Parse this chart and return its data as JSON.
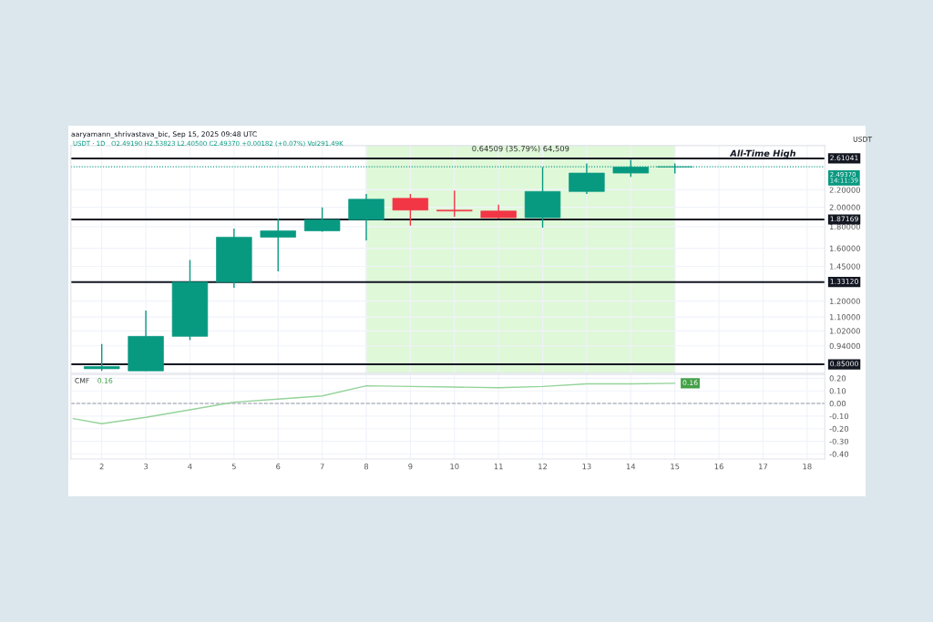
{
  "chart_data": [
    {
      "type": "candlestick",
      "title": "aaryamann_shrivastava_bic, Sep 15, 2025 09:48 UTC",
      "subtitle": "USDT · 1D   O2.49190 H2.53823 L2.40500 C2.49370 +0.00182 (+0.07%) Vol291.49K",
      "ylabel": "USDT",
      "x": [
        2,
        3,
        4,
        5,
        6,
        7,
        8,
        9,
        10,
        11,
        12,
        13,
        14,
        15
      ],
      "ohlc": [
        [
          0.83,
          0.95,
          0.82,
          0.84
        ],
        [
          0.82,
          1.14,
          0.82,
          0.99
        ],
        [
          0.99,
          1.5,
          0.97,
          1.33
        ],
        [
          1.33,
          1.78,
          1.29,
          1.7
        ],
        [
          1.7,
          1.88,
          1.41,
          1.76
        ],
        [
          1.76,
          2.0,
          1.75,
          1.87
        ],
        [
          1.87,
          2.15,
          1.67,
          2.09
        ],
        [
          2.1,
          2.15,
          1.81,
          1.97
        ],
        [
          1.97,
          2.19,
          1.9,
          1.96
        ],
        [
          1.96,
          2.03,
          1.88,
          1.89
        ],
        [
          1.89,
          2.49,
          1.79,
          2.18
        ],
        [
          2.18,
          2.54,
          2.15,
          2.41
        ],
        [
          2.41,
          2.59,
          2.36,
          2.49
        ],
        [
          2.4919,
          2.53823,
          2.405,
          2.4937
        ]
      ],
      "colors": [
        "#089981",
        "#089981",
        "#089981",
        "#089981",
        "#089981",
        "#089981",
        "#089981",
        "#f23645",
        "#f23645",
        "#f23645",
        "#089981",
        "#089981",
        "#089981",
        "#089981"
      ],
      "log": true,
      "xlim": [
        1.3,
        18.4
      ],
      "ylim": [
        0.81,
        2.8
      ],
      "yticks": [
        {
          "value": 0.94,
          "label": "0.94000"
        },
        {
          "value": 1.02,
          "label": "1.02000"
        },
        {
          "value": 1.1,
          "label": "1.10000"
        },
        {
          "value": 1.2,
          "label": "1.20000"
        },
        {
          "value": 1.45,
          "label": "1.45000"
        },
        {
          "value": 1.6,
          "label": "1.60000"
        },
        {
          "value": 1.8,
          "label": "1.80000"
        },
        {
          "value": 2.0,
          "label": "2.00000"
        },
        {
          "value": 2.2,
          "label": "2.20000"
        }
      ],
      "xticks": [
        2,
        3,
        4,
        5,
        6,
        7,
        8,
        9,
        10,
        11,
        12,
        13,
        14,
        15,
        16,
        17,
        18
      ],
      "tick_labels": "y",
      "grid": true,
      "ref_lines": [
        {
          "axis": "y",
          "value": 2.61041,
          "label": "2.61041",
          "color": "#131722"
        },
        {
          "axis": "y",
          "value": 1.87169,
          "label": "1.87169",
          "color": "#131722"
        },
        {
          "axis": "y",
          "value": 1.3312,
          "label": "1.33120",
          "color": "#131722"
        },
        {
          "axis": "y",
          "value": 0.85,
          "label": "0.85000",
          "color": "#131722"
        },
        {
          "axis": "y",
          "value": 2.4937,
          "label": "2.49370\n14:11:39",
          "color": "#089981",
          "line_style": "dotted"
        }
      ],
      "bands": [
        {
          "axis": "x",
          "from": 8,
          "to": 15,
          "label": "0.64509 (35.79%) 64,509",
          "color": "#dff8d8"
        }
      ],
      "annotations": [
        {
          "text": "All-Time High",
          "x": 17,
          "y": 2.61041
        }
      ]
    },
    {
      "type": "line",
      "title": "CMF",
      "x": [
        1.35,
        2,
        3,
        4,
        5,
        6,
        7,
        8,
        9,
        10,
        11,
        12,
        13,
        14,
        15
      ],
      "series": [
        {
          "color": "#94d39a",
          "values": [
            -0.12,
            -0.16,
            -0.11,
            -0.05,
            0.01,
            0.035,
            0.06,
            0.14,
            0.135,
            0.13,
            0.125,
            0.135,
            0.155,
            0.155,
            0.16
          ]
        }
      ],
      "xlim": [
        1.3,
        18.4
      ],
      "ylim": [
        -0.44,
        0.23
      ],
      "xticks": [
        2,
        3,
        4,
        5,
        6,
        7,
        8,
        9,
        10,
        11,
        12,
        13,
        14,
        15,
        16,
        17,
        18
      ],
      "yticks": [
        {
          "value": -0.4,
          "label": "-0.40"
        },
        {
          "value": -0.3,
          "label": "-0.30"
        },
        {
          "value": -0.2,
          "label": "-0.20"
        },
        {
          "value": -0.1,
          "label": "-0.10"
        },
        {
          "value": 0.0,
          "label": "0.00"
        },
        {
          "value": 0.1,
          "label": "0.10"
        },
        {
          "value": 0.2,
          "label": "0.20"
        }
      ],
      "grid": true,
      "ref_lines": [
        {
          "axis": "y",
          "value": 0,
          "color": "#9598a1",
          "line_style": "dashed"
        }
      ],
      "annotations": [
        "0.16",
        {
          "text": "0.16",
          "x": 15,
          "y": 0.16
        }
      ]
    }
  ]
}
